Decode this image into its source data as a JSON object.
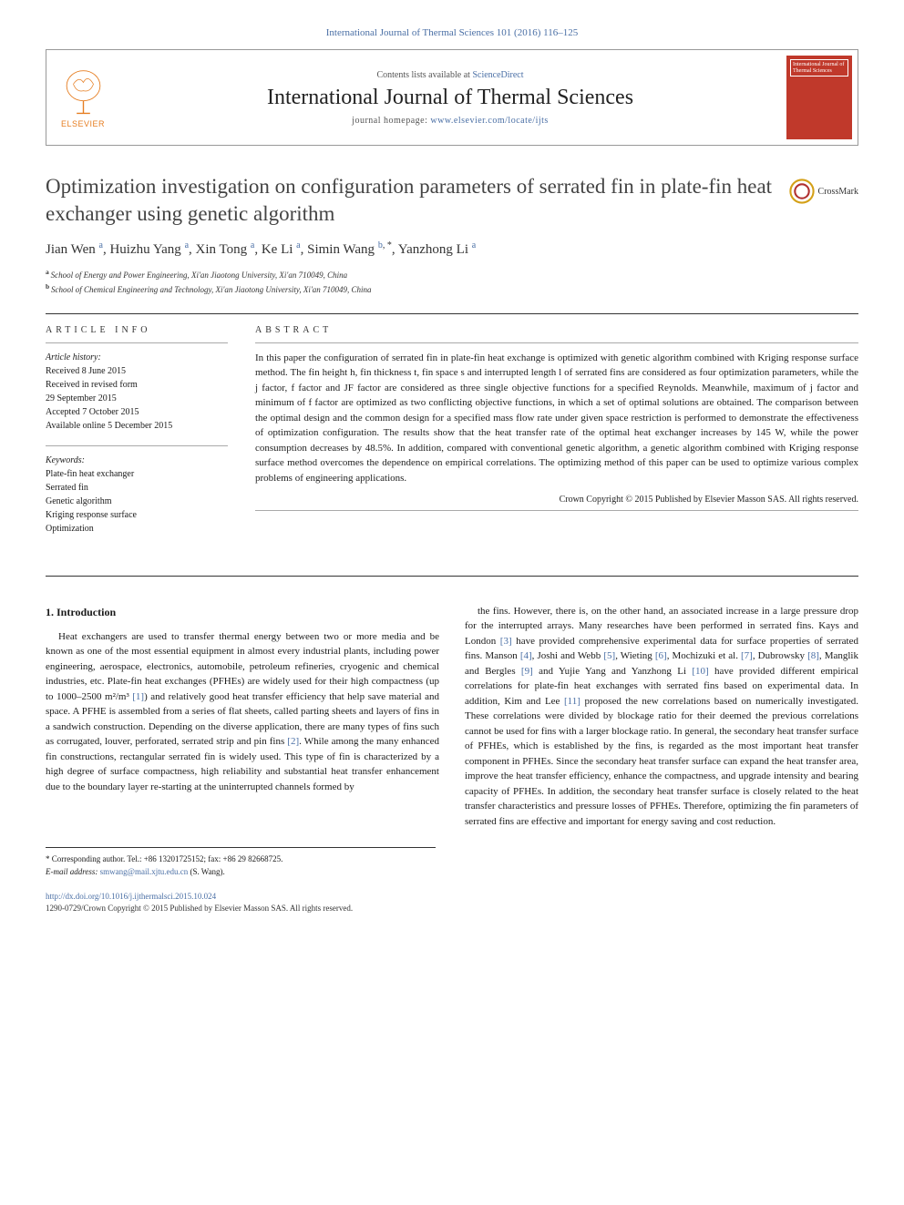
{
  "top_citation": "International Journal of Thermal Sciences 101 (2016) 116–125",
  "header": {
    "contents_prefix": "Contents lists available at ",
    "contents_link": "ScienceDirect",
    "journal_name": "International Journal of Thermal Sciences",
    "homepage_prefix": "journal homepage: ",
    "homepage_url": "www.elsevier.com/locate/ijts",
    "elsevier_label": "ELSEVIER",
    "cover_text": "International Journal of Thermal Sciences"
  },
  "article": {
    "title": "Optimization investigation on configuration parameters of serrated fin in plate-fin heat exchanger using genetic algorithm",
    "crossmark": "CrossMark",
    "authors_html": "Jian Wen <sup>a</sup>, Huizhu Yang <sup>a</sup>, Xin Tong <sup>a</sup>, Ke Li <sup>a</sup>, Simin Wang <sup>b, *</sup>, Yanzhong Li <sup>a</sup>",
    "authors": [
      {
        "name": "Jian Wen",
        "aff": "a"
      },
      {
        "name": "Huizhu Yang",
        "aff": "a"
      },
      {
        "name": "Xin Tong",
        "aff": "a"
      },
      {
        "name": "Ke Li",
        "aff": "a"
      },
      {
        "name": "Simin Wang",
        "aff": "b",
        "corresponding": true
      },
      {
        "name": "Yanzhong Li",
        "aff": "a"
      }
    ],
    "affiliations": [
      {
        "sup": "a",
        "text": "School of Energy and Power Engineering, Xi'an Jiaotong University, Xi'an 710049, China"
      },
      {
        "sup": "b",
        "text": "School of Chemical Engineering and Technology, Xi'an Jiaotong University, Xi'an 710049, China"
      }
    ]
  },
  "info": {
    "label": "ARTICLE INFO",
    "history_label": "Article history:",
    "history": [
      "Received 8 June 2015",
      "Received in revised form",
      "29 September 2015",
      "Accepted 7 October 2015",
      "Available online 5 December 2015"
    ],
    "keywords_label": "Keywords:",
    "keywords": [
      "Plate-fin heat exchanger",
      "Serrated fin",
      "Genetic algorithm",
      "Kriging response surface",
      "Optimization"
    ]
  },
  "abstract": {
    "label": "ABSTRACT",
    "text": "In this paper the configuration of serrated fin in plate-fin heat exchange is optimized with genetic algorithm combined with Kriging response surface method. The fin height h, fin thickness t, fin space s and interrupted length l of serrated fins are considered as four optimization parameters, while the j factor, f factor and JF factor are considered as three single objective functions for a specified Reynolds. Meanwhile, maximum of j factor and minimum of f factor are optimized as two conflicting objective functions, in which a set of optimal solutions are obtained. The comparison between the optimal design and the common design for a specified mass flow rate under given space restriction is performed to demonstrate the effectiveness of optimization configuration. The results show that the heat transfer rate of the optimal heat exchanger increases by 145 W, while the power consumption decreases by 48.5%. In addition, compared with conventional genetic algorithm, a genetic algorithm combined with Kriging response surface method overcomes the dependence on empirical correlations. The optimizing method of this paper can be used to optimize various complex problems of engineering applications.",
    "copyright": "Crown Copyright © 2015 Published by Elsevier Masson SAS. All rights reserved."
  },
  "body": {
    "section_heading": "1. Introduction",
    "col1": "Heat exchangers are used to transfer thermal energy between two or more media and be known as one of the most essential equipment in almost every industrial plants, including power engineering, aerospace, electronics, automobile, petroleum refineries, cryogenic and chemical industries, etc. Plate-fin heat exchanges (PFHEs) are widely used for their high compactness (up to 1000–2500 m²/m³ [1]) and relatively good heat transfer efficiency that help save material and space. A PFHE is assembled from a series of flat sheets, called parting sheets and layers of fins in a sandwich construction. Depending on the diverse application, there are many types of fins such as corrugated, louver, perforated, serrated strip and pin fins [2]. While among the many enhanced fin constructions, rectangular serrated fin is widely used. This type of fin is characterized by a high degree of surface compactness, high reliability and substantial heat transfer enhancement due to the boundary layer re-starting at the uninterrupted channels formed by",
    "col2": "the fins. However, there is, on the other hand, an associated increase in a large pressure drop for the interrupted arrays. Many researches have been performed in serrated fins. Kays and London [3] have provided comprehensive experimental data for surface properties of serrated fins. Manson [4], Joshi and Webb [5], Wieting [6], Mochizuki et al. [7], Dubrowsky [8], Manglik and Bergles [9] and Yujie Yang and Yanzhong Li [10] have provided different empirical correlations for plate-fin heat exchanges with serrated fins based on experimental data. In addition, Kim and Lee [11] proposed the new correlations based on numerically investigated. These correlations were divided by blockage ratio for their deemed the previous correlations cannot be used for fins with a larger blockage ratio. In general, the secondary heat transfer surface of PFHEs, which is established by the fins, is regarded as the most important heat transfer component in PFHEs. Since the secondary heat transfer surface can expand the heat transfer area, improve the heat transfer efficiency, enhance the compactness, and upgrade intensity and bearing capacity of PFHEs. In addition, the secondary heat transfer surface is closely related to the heat transfer characteristics and pressure losses of PFHEs. Therefore, optimizing the fin parameters of serrated fins are effective and important for energy saving and cost reduction."
  },
  "corresponding": {
    "label": "* Corresponding author. Tel.: +86 13201725152; fax: +86 29 82668725.",
    "email_label": "E-mail address:",
    "email": "smwang@mail.xjtu.edu.cn",
    "email_name": "(S. Wang)."
  },
  "footer": {
    "doi_url": "http://dx.doi.org/10.1016/j.ijthermalsci.2015.10.024",
    "issn_line": "1290-0729/Crown Copyright © 2015 Published by Elsevier Masson SAS. All rights reserved."
  },
  "colors": {
    "link": "#4a6fa5",
    "elsevier_orange": "#e67e22",
    "cover_red": "#c0392b",
    "text": "#1a1a1a",
    "border": "#999",
    "crossmark_outer": "#d4a017",
    "crossmark_inner": "#b03030"
  }
}
